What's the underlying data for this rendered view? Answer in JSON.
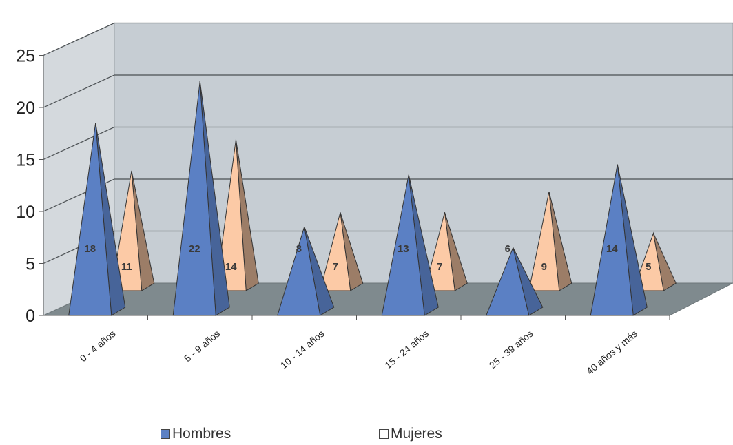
{
  "chart_data": {
    "type": "bar",
    "style": "3d-pyramid",
    "categories": [
      "0 - 4 años",
      "5 - 9 años",
      "10 - 14 años",
      "15 - 24 años",
      "25 - 39 años",
      "40 años y más"
    ],
    "series": [
      {
        "name": "Hombres",
        "values": [
          18,
          22,
          8,
          13,
          6,
          14
        ],
        "color": "#5b80c4"
      },
      {
        "name": "Mujeres",
        "values": [
          11,
          14,
          7,
          7,
          9,
          5
        ],
        "color": "#fccaa6"
      }
    ],
    "yticks": [
      "0",
      "5",
      "10",
      "15",
      "20",
      "25"
    ],
    "ylim": [
      0,
      25
    ],
    "grid": true,
    "data_labels": true,
    "legend_position": "bottom",
    "colors": {
      "wall": "#c6cdd3",
      "side_wall": "#d4d9dd",
      "floor": "#7f8a8e",
      "gridline": "#4a4f52"
    }
  }
}
